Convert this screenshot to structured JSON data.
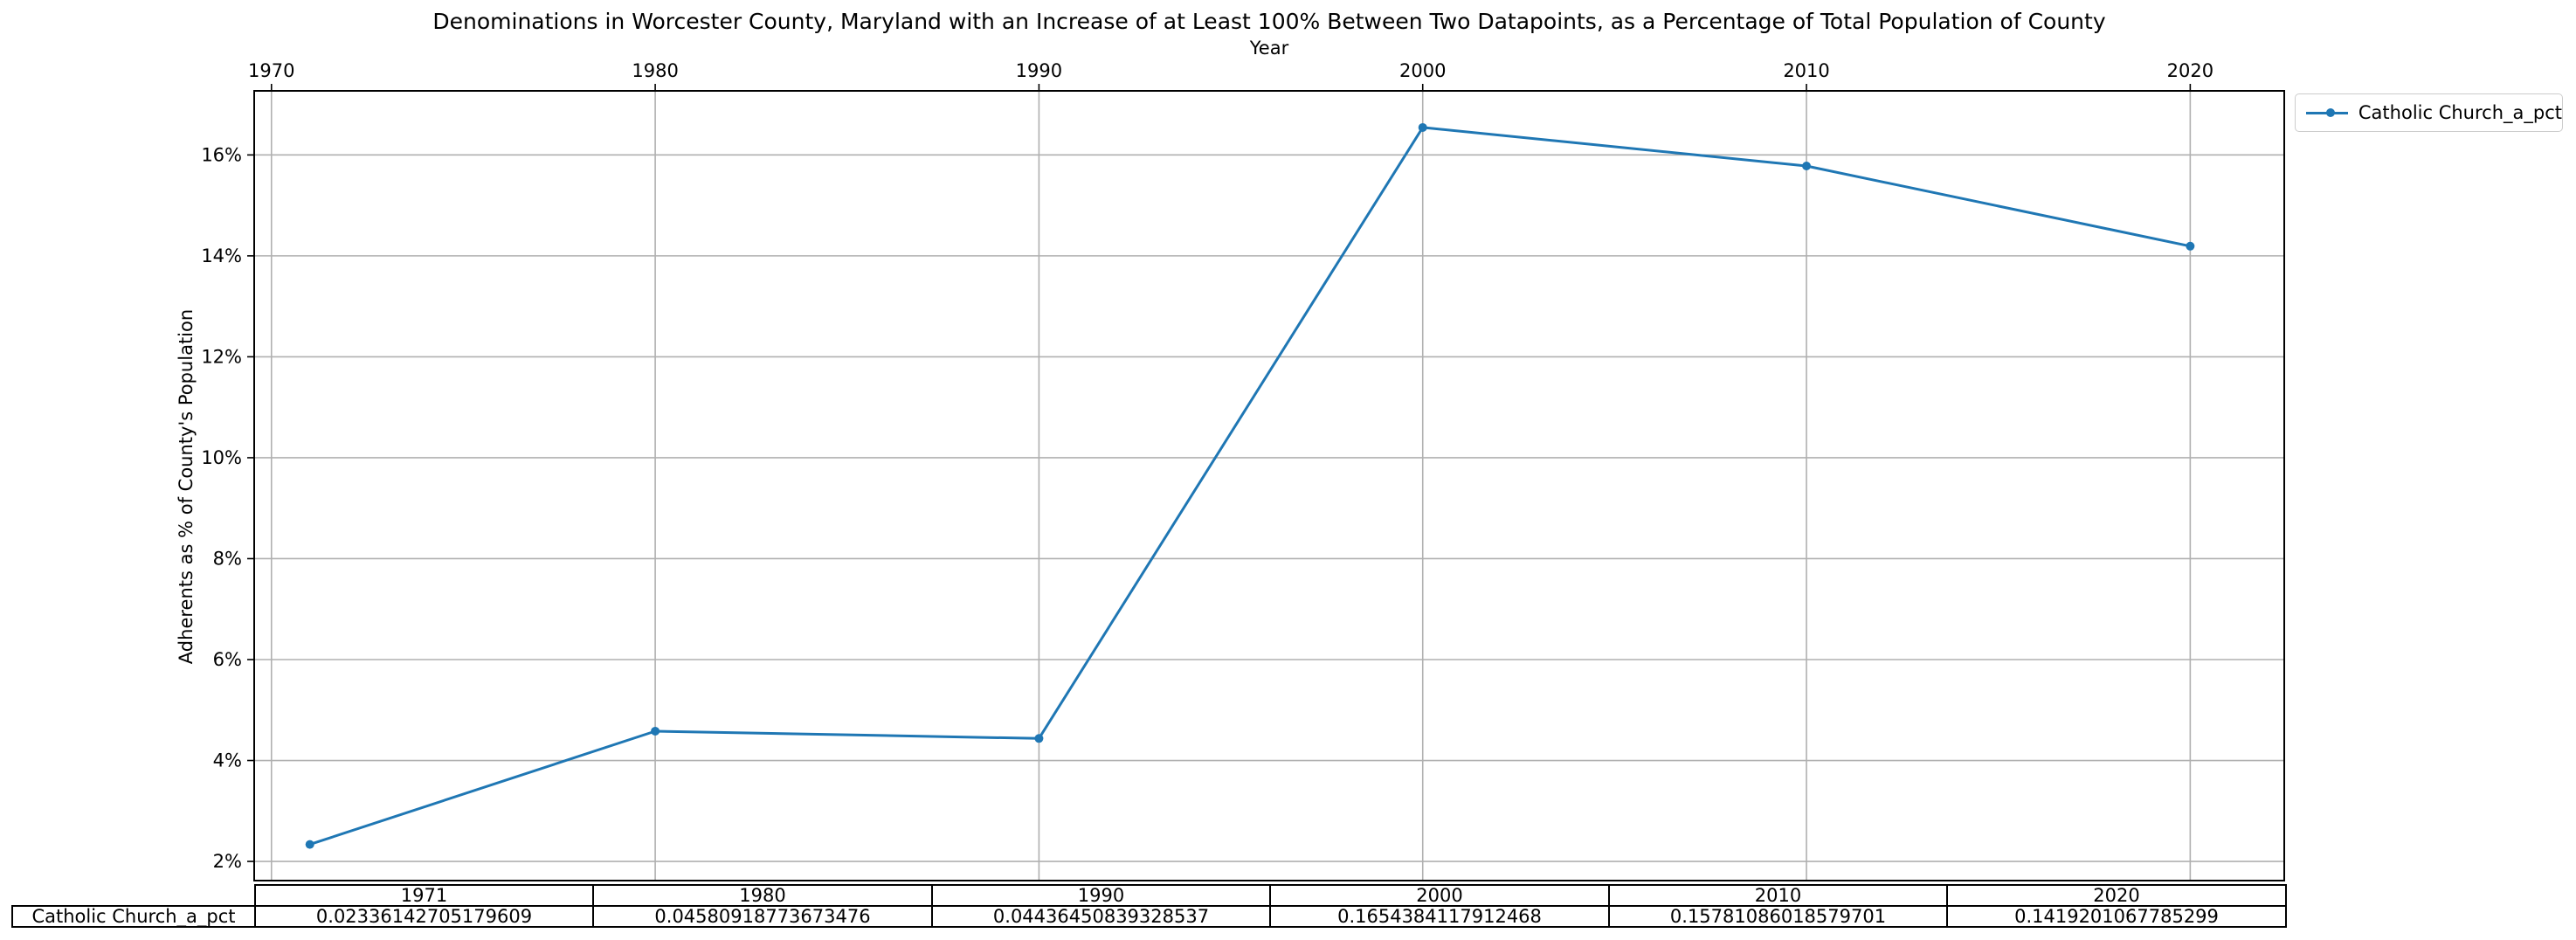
{
  "chart_data": {
    "type": "line",
    "title": "Denominations in Worcester County, Maryland with an Increase of at Least 100% Between Two Datapoints, as a Percentage of Total Population of County",
    "xlabel": "Year",
    "ylabel": "Adherents as % of County's Population",
    "x": [
      1971,
      1980,
      1990,
      2000,
      2010,
      2020
    ],
    "series": [
      {
        "name": "Catholic Church_a_pct",
        "values": [
          0.02336142705179609,
          0.04580918773673476,
          0.04436450839328537,
          0.1654384117912468,
          0.15781086018579701,
          0.1419201067785299
        ],
        "color": "#1f77b4"
      }
    ],
    "xlim": [
      1969.55,
      2022.45
    ],
    "ylim": [
      0.0162,
      0.1727
    ],
    "xticks": [
      1970,
      1980,
      1990,
      2000,
      2010,
      2020
    ],
    "yticks": [
      0.02,
      0.04,
      0.06,
      0.08,
      0.1,
      0.12,
      0.14,
      0.16
    ],
    "ytick_labels": [
      "2%",
      "4%",
      "6%",
      "8%",
      "10%",
      "12%",
      "14%",
      "16%"
    ],
    "grid": true,
    "legend_position": "outside top-right",
    "table": {
      "col_labels": [
        "1971",
        "1980",
        "1990",
        "2000",
        "2010",
        "2020"
      ],
      "row_label": "Catholic Church_a_pct",
      "cells": [
        "0.02336142705179609",
        "0.04580918773673476",
        "0.04436450839328537",
        "0.1654384117912468",
        "0.15781086018579701",
        "0.1419201067785299"
      ]
    }
  }
}
